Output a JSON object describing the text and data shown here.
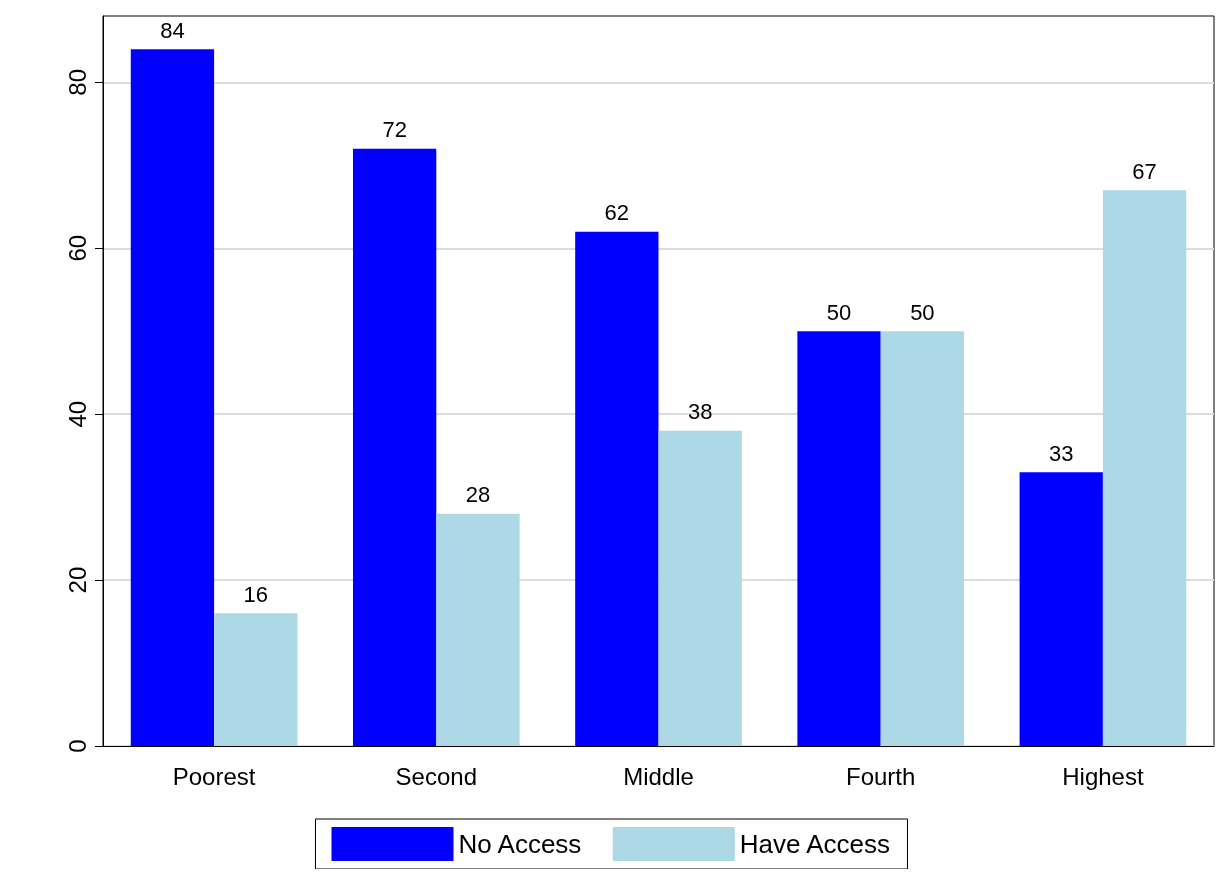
{
  "chart_data": {
    "type": "bar",
    "categories": [
      "Poorest",
      "Second",
      "Middle",
      "Fourth",
      "Highest"
    ],
    "series": [
      {
        "name": "No Access",
        "color": "#0000ff",
        "values": [
          84,
          72,
          62,
          50,
          33
        ]
      },
      {
        "name": "Have Access",
        "color": "#add8e6",
        "values": [
          16,
          28,
          38,
          50,
          67
        ]
      }
    ],
    "ylim": [
      0,
      88
    ],
    "yticks": [
      0,
      20,
      40,
      60,
      80
    ],
    "grid": "y",
    "legend": "bottom",
    "data_labels": true
  }
}
